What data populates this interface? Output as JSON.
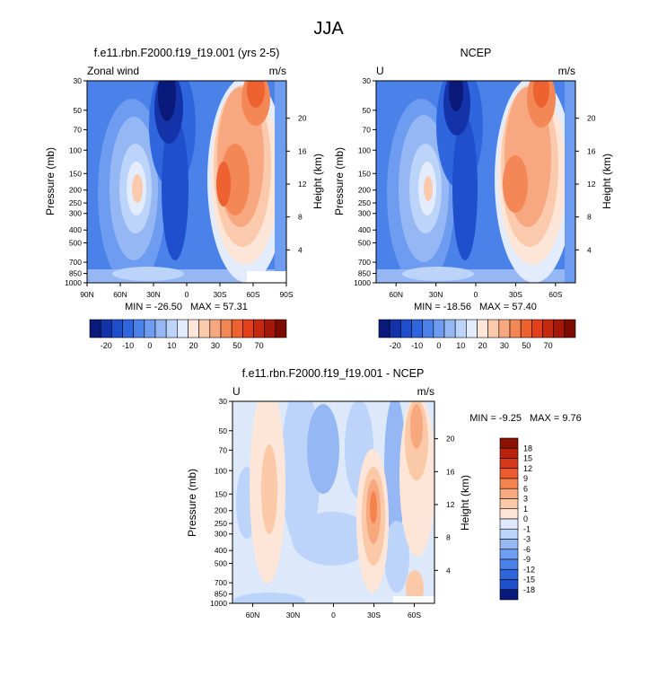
{
  "chart_data": {
    "type": "heatmap",
    "title": "JJA",
    "panels": [
      {
        "id": "model",
        "title": "f.e11.rbn.F2000.f19_f19.001 (yrs 2-5)",
        "left_label": "Zonal wind",
        "units": "m/s",
        "ylabel": "Pressure (mb)",
        "ylabel_right": "Height (km)",
        "pressure_ticks": [
          "30",
          "50",
          "70",
          "100",
          "150",
          "200",
          "250",
          "300",
          "400",
          "500",
          "700",
          "850",
          "1000"
        ],
        "height_ticks": [
          "20",
          "16",
          "12",
          "8",
          "4"
        ],
        "x_ticks": [
          "90N",
          "60N",
          "30N",
          "0",
          "30S",
          "60S",
          "90S"
        ],
        "x_range": [
          "90N",
          "90S"
        ],
        "min_label": "MIN = -26.50",
        "max_label": "MAX =  57.31",
        "min": -26.5,
        "max": 57.31
      },
      {
        "id": "obs",
        "title": "NCEP",
        "left_label": "U",
        "units": "m/s",
        "ylabel": "Pressure (mb)",
        "ylabel_right": "Height (km)",
        "pressure_ticks": [
          "30",
          "50",
          "70",
          "100",
          "150",
          "200",
          "250",
          "300",
          "400",
          "500",
          "700",
          "850",
          "1000"
        ],
        "height_ticks": [
          "20",
          "16",
          "12",
          "8",
          "4"
        ],
        "x_ticks": [
          "60N",
          "30N",
          "0",
          "30S",
          "60S"
        ],
        "x_range": [
          "75N",
          "75S"
        ],
        "min_label": "MIN = -18.56",
        "max_label": "MAX =  57.40",
        "min": -18.56,
        "max": 57.4
      },
      {
        "id": "diff",
        "title": "f.e11.rbn.F2000.f19_f19.001 - NCEP",
        "left_label": "U",
        "units": "m/s",
        "ylabel": "Pressure (mb)",
        "ylabel_right": "Height (km)",
        "pressure_ticks": [
          "30",
          "50",
          "70",
          "100",
          "150",
          "200",
          "250",
          "300",
          "400",
          "500",
          "700",
          "850",
          "1000"
        ],
        "height_ticks": [
          "20",
          "16",
          "12",
          "8",
          "4"
        ],
        "x_ticks": [
          "60N",
          "30N",
          "0",
          "30S",
          "60S"
        ],
        "x_range": [
          "75N",
          "75S"
        ],
        "min_label": "MIN =  -9.25",
        "max_label": "MAX =   9.76",
        "min": -9.25,
        "max": 9.76
      }
    ],
    "colorbar_main": {
      "labels": [
        "-20",
        "-10",
        "0",
        "10",
        "20",
        "30",
        "50",
        "70"
      ],
      "colors": [
        "#0a1a7a",
        "#1433a8",
        "#1f4fcc",
        "#2f66de",
        "#4a82ea",
        "#6d9cf0",
        "#95b8f5",
        "#bcd3fa",
        "#e2ecfd",
        "#fde6d8",
        "#fbc9ac",
        "#f8a880",
        "#f48756",
        "#ee6232",
        "#e2401a",
        "#c52a10",
        "#a31808",
        "#7e0b02"
      ]
    },
    "colorbar_diff": {
      "labels": [
        "18",
        "15",
        "12",
        "9",
        "6",
        "3",
        "1",
        "0",
        "-1",
        "-3",
        "-6",
        "-9",
        "-12",
        "-15",
        "-18"
      ],
      "colors": [
        "#8c1206",
        "#b8220e",
        "#d8381a",
        "#ec5a2e",
        "#f4834f",
        "#f8a87e",
        "#fbc9a8",
        "#fde6d7",
        "#dde8fb",
        "#bcd3fa",
        "#95b8f5",
        "#6d9cf0",
        "#4a82ea",
        "#2f66de",
        "#1f4fcc",
        "#0a1a7a"
      ]
    }
  }
}
